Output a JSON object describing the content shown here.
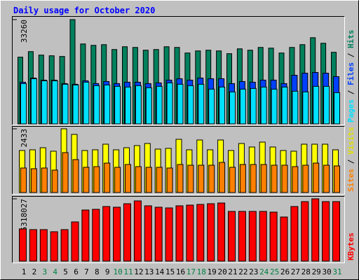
{
  "chart_data": [
    {
      "type": "bar",
      "title": "Daily usage for October 2020",
      "ylim": [
        0,
        33260
      ],
      "yticks": [
        33260
      ],
      "legend_separator": " / ",
      "series": [
        {
          "name": "Hits",
          "color": "#00805c",
          "values": [
            21284,
            23057,
            21950,
            21728,
            21506,
            33260,
            25497,
            25054,
            25276,
            23724,
            24610,
            24389,
            23502,
            23724,
            24610,
            24389,
            22615,
            23280,
            23502,
            23280,
            22394,
            23945,
            23502,
            24389,
            24167,
            22615,
            24389,
            25276,
            27491,
            25719,
            22837
          ]
        },
        {
          "name": "Files",
          "color": "#0040ff",
          "values": [
            13302,
            14632,
            13967,
            13967,
            12859,
            12637,
            13745,
            12859,
            13524,
            12859,
            13302,
            13302,
            12859,
            13080,
            13967,
            14411,
            13967,
            14632,
            14411,
            14411,
            12859,
            13524,
            13302,
            13967,
            13967,
            12859,
            15519,
            16184,
            16406,
            16184,
            15076
          ]
        },
        {
          "name": "Pages",
          "color": "#00e0ff",
          "values": [
            12859,
            14411,
            13745,
            13745,
            12637,
            12415,
            13302,
            12194,
            12415,
            11972,
            11750,
            12194,
            11528,
            11972,
            13080,
            12637,
            12194,
            12637,
            11085,
            11750,
            10198,
            11085,
            11307,
            11750,
            11085,
            11750,
            10420,
            10198,
            11972,
            11972,
            9977
          ]
        }
      ]
    },
    {
      "type": "bar",
      "ylim": [
        0,
        2433
      ],
      "yticks": [
        2433
      ],
      "legend_separator": " / ",
      "series": [
        {
          "name": "Visits",
          "color": "#ffff00",
          "values": [
            1604,
            1631,
            1711,
            1578,
            2433,
            2219,
            1604,
            1631,
            1845,
            1631,
            1711,
            1792,
            1872,
            1658,
            1685,
            2032,
            1631,
            2006,
            1631,
            2006,
            1604,
            1872,
            1738,
            1925,
            1738,
            1604,
            1578,
            1845,
            1845,
            1845,
            1631
          ]
        },
        {
          "name": "Sites",
          "color": "#ff8000",
          "values": [
            936,
            909,
            936,
            856,
            1524,
            1257,
            963,
            989,
            1123,
            963,
            1070,
            989,
            963,
            963,
            936,
            1070,
            1043,
            1043,
            1043,
            1150,
            963,
            1070,
            1070,
            1070,
            1043,
            1043,
            989,
            1043,
            1123,
            1043,
            1016
          ]
        }
      ]
    },
    {
      "type": "bar",
      "ylim": [
        0,
        5318027
      ],
      "yticks": [
        5318027
      ],
      "categories": [
        "1",
        "2",
        "3",
        "4",
        "5",
        "6",
        "7",
        "8",
        "9",
        "10",
        "11",
        "12",
        "13",
        "14",
        "15",
        "16",
        "17",
        "18",
        "19",
        "20",
        "21",
        "22",
        "23",
        "24",
        "25",
        "26",
        "27",
        "28",
        "29",
        "30",
        "31"
      ],
      "category_colors": [
        "#000000",
        "#000000",
        "#008040",
        "#008040",
        "#000000",
        "#000000",
        "#000000",
        "#000000",
        "#000000",
        "#008040",
        "#008040",
        "#000000",
        "#000000",
        "#000000",
        "#000000",
        "#000000",
        "#008040",
        "#008040",
        "#000000",
        "#000000",
        "#000000",
        "#000000",
        "#000000",
        "#008040",
        "#008040",
        "#000000",
        "#000000",
        "#000000",
        "#000000",
        "#000000",
        "#008040"
      ],
      "series": [
        {
          "name": "KBytes",
          "color": "#ff0000",
          "values": [
            2748638,
            2688885,
            2688885,
            2509626,
            2688885,
            3346168,
            4361969,
            4421722,
            4660734,
            4600981,
            4899746,
            5138759,
            4720487,
            4600981,
            4541228,
            4720487,
            4780240,
            4839993,
            4899746,
            4959499,
            4242463,
            4242463,
            4242463,
            4242463,
            4182710,
            3764439,
            4660734,
            5078906,
            5318027,
            5078906,
            5078906
          ]
        }
      ]
    }
  ]
}
